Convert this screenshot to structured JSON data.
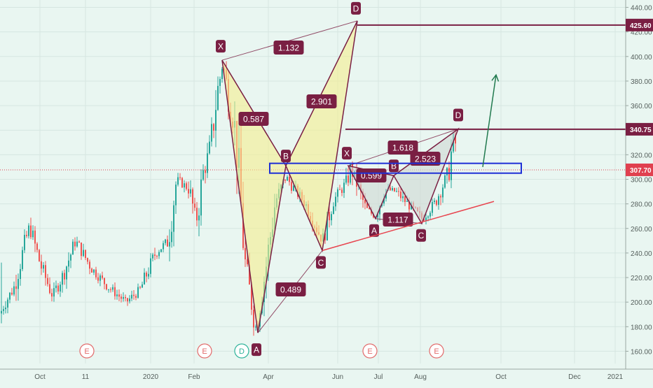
{
  "chart_data": {
    "type": "candlestick",
    "y_axis": {
      "position": "right",
      "ticks": [
        160,
        180,
        200,
        220,
        240,
        260,
        280,
        300,
        320,
        340,
        360,
        380,
        400,
        420,
        440
      ],
      "range": [
        150,
        446
      ]
    },
    "x_axis": {
      "labels": [
        "Oct",
        "11",
        "2020",
        "Feb",
        "Apr",
        "Jun",
        "Jul",
        "Aug",
        "Oct",
        "Dec",
        "2021"
      ]
    },
    "price_labels": [
      {
        "text": "425.60",
        "value": 425.6,
        "color": "#7a1f43"
      },
      {
        "text": "340.75",
        "value": 340.75,
        "color": "#7a1f43"
      },
      {
        "text": "307.70",
        "value": 307.7,
        "color": "#e0404f"
      }
    ],
    "horizontal_lines": [
      {
        "value": 425.6
      },
      {
        "value": 340.75
      },
      {
        "value": 307.7
      }
    ],
    "patterns": [
      {
        "points": [
          {
            "label": "X",
            "value": 397
          },
          {
            "label": "A",
            "value": 175
          },
          {
            "label": "B",
            "value": 311
          },
          {
            "label": "C",
            "value": 242
          },
          {
            "label": "D",
            "value": 429
          }
        ],
        "ratios": [
          {
            "text": "0.587"
          },
          {
            "text": "0.489"
          },
          {
            "text": "2.901"
          },
          {
            "text": "1.132"
          }
        ]
      },
      {
        "points": [
          {
            "label": "X",
            "value": 311
          },
          {
            "label": "A",
            "value": 268
          },
          {
            "label": "B",
            "value": 303
          },
          {
            "label": "C",
            "value": 264
          },
          {
            "label": "D",
            "value": 341
          }
        ],
        "ratios": [
          {
            "text": "0.599"
          },
          {
            "text": "1.117"
          },
          {
            "text": "2.523"
          },
          {
            "text": "1.618"
          }
        ]
      }
    ],
    "zone": {
      "low": 305,
      "high": 313
    },
    "trendlines": [
      {
        "from": 242,
        "to": 282,
        "color": "#e8454f"
      }
    ],
    "projection_arrow": {
      "from": 310,
      "to": 385
    },
    "events": [
      {
        "text": "E",
        "color": "#e26b6b"
      },
      {
        "text": "E",
        "color": "#e26b6b"
      },
      {
        "text": "D",
        "color": "#2eb39a"
      },
      {
        "text": "E",
        "color": "#e26b6b"
      },
      {
        "text": "E",
        "color": "#e26b6b"
      }
    ]
  }
}
